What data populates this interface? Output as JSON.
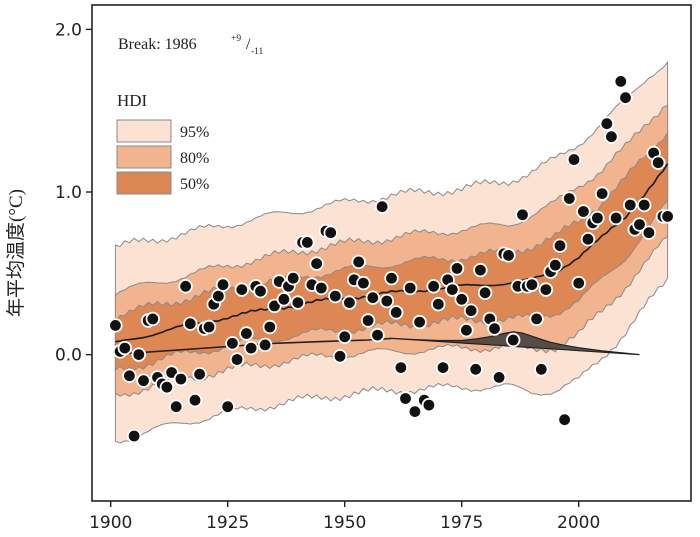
{
  "chart_data": {
    "type": "scatter",
    "ylabel": "年平均温度(°C)",
    "xlim": [
      1896,
      2024
    ],
    "ylim": [
      -0.9,
      2.15
    ],
    "x_ticks": [
      1900,
      1925,
      1950,
      1975,
      2000
    ],
    "y_ticks": [
      0.0,
      1.0,
      2.0
    ],
    "y_tick_labels": [
      "0.0",
      "1.0",
      "2.0"
    ],
    "annotation": {
      "prefix": "Break: 1986",
      "sup": "+9",
      "sep": "/",
      "sub": "-11"
    },
    "legend": {
      "title": "HDI",
      "placement": "top-left",
      "entries": [
        {
          "label": "95%",
          "color": "#fbe2d3"
        },
        {
          "label": "80%",
          "color": "#f2b48e"
        },
        {
          "label": "50%",
          "color": "#dd8755"
        }
      ]
    },
    "band_colors": {
      "hdi95": "#fbe2d3",
      "hdi80": "#f2b48e",
      "hdi50": "#dd8755",
      "band_edge": "#8a8a8a",
      "mean_line": "#1a1a1a",
      "marker": "#111111",
      "marker_edge": "#ffffff"
    },
    "band_anchors": {
      "x": [
        1901,
        1915,
        1930,
        1945,
        1960,
        1975,
        1985,
        1990,
        1995,
        2000,
        2005,
        2010,
        2015,
        2019
      ],
      "mean": [
        0.07,
        0.17,
        0.26,
        0.33,
        0.38,
        0.42,
        0.44,
        0.46,
        0.51,
        0.6,
        0.72,
        0.85,
        1.02,
        1.16
      ],
      "hdi50_lo": [
        -0.1,
        0.0,
        0.08,
        0.14,
        0.18,
        0.21,
        0.22,
        0.22,
        0.26,
        0.33,
        0.46,
        0.6,
        0.78,
        0.93
      ],
      "hdi50_hi": [
        0.24,
        0.34,
        0.43,
        0.5,
        0.56,
        0.6,
        0.63,
        0.67,
        0.72,
        0.82,
        0.94,
        1.08,
        1.24,
        1.38
      ],
      "hdi80_lo": [
        -0.25,
        -0.15,
        -0.07,
        -0.01,
        0.02,
        0.04,
        0.05,
        0.03,
        0.05,
        0.12,
        0.27,
        0.42,
        0.58,
        0.72
      ],
      "hdi80_hi": [
        0.38,
        0.48,
        0.58,
        0.66,
        0.72,
        0.77,
        0.8,
        0.86,
        0.93,
        1.04,
        1.14,
        1.27,
        1.44,
        1.56
      ],
      "hdi95_lo": [
        -0.53,
        -0.42,
        -0.33,
        -0.26,
        -0.22,
        -0.2,
        -0.2,
        -0.23,
        -0.22,
        -0.16,
        -0.02,
        0.14,
        0.32,
        0.46
      ],
      "hdi95_hi": [
        0.66,
        0.74,
        0.83,
        0.91,
        0.98,
        1.02,
        1.07,
        1.12,
        1.2,
        1.3,
        1.42,
        1.56,
        1.72,
        1.8
      ]
    },
    "trend_line": {
      "x": [
        1901,
        1905,
        1915,
        1925,
        1935,
        1945,
        1955,
        1960
      ],
      "y": [
        0.0,
        0.01,
        0.03,
        0.05,
        0.07,
        0.08,
        0.09,
        0.1
      ]
    },
    "break_density": {
      "x": [
        1960,
        1965,
        1970,
        1975,
        1978,
        1981,
        1984,
        1986,
        1988,
        1990,
        1992,
        1994,
        1997,
        2000,
        2005,
        2013
      ],
      "height": [
        0.0,
        0.002,
        0.006,
        0.015,
        0.03,
        0.05,
        0.075,
        0.09,
        0.085,
        0.07,
        0.055,
        0.04,
        0.027,
        0.018,
        0.008,
        0.0
      ]
    },
    "points": [
      {
        "x": 1901,
        "y": 0.18
      },
      {
        "x": 1902,
        "y": 0.02
      },
      {
        "x": 1903,
        "y": 0.04
      },
      {
        "x": 1904,
        "y": -0.13
      },
      {
        "x": 1905,
        "y": -0.5
      },
      {
        "x": 1906,
        "y": 0.0
      },
      {
        "x": 1907,
        "y": -0.16
      },
      {
        "x": 1908,
        "y": 0.21
      },
      {
        "x": 1909,
        "y": 0.22
      },
      {
        "x": 1910,
        "y": -0.14
      },
      {
        "x": 1911,
        "y": -0.18
      },
      {
        "x": 1912,
        "y": -0.2
      },
      {
        "x": 1913,
        "y": -0.11
      },
      {
        "x": 1914,
        "y": -0.32
      },
      {
        "x": 1915,
        "y": -0.15
      },
      {
        "x": 1916,
        "y": 0.42
      },
      {
        "x": 1917,
        "y": 0.19
      },
      {
        "x": 1918,
        "y": -0.28
      },
      {
        "x": 1919,
        "y": -0.12
      },
      {
        "x": 1920,
        "y": 0.16
      },
      {
        "x": 1921,
        "y": 0.17
      },
      {
        "x": 1922,
        "y": 0.31
      },
      {
        "x": 1923,
        "y": 0.36
      },
      {
        "x": 1924,
        "y": 0.43
      },
      {
        "x": 1925,
        "y": -0.32
      },
      {
        "x": 1926,
        "y": 0.07
      },
      {
        "x": 1927,
        "y": -0.03
      },
      {
        "x": 1928,
        "y": 0.4
      },
      {
        "x": 1929,
        "y": 0.13
      },
      {
        "x": 1930,
        "y": 0.04
      },
      {
        "x": 1931,
        "y": 0.42
      },
      {
        "x": 1932,
        "y": 0.39
      },
      {
        "x": 1933,
        "y": 0.06
      },
      {
        "x": 1934,
        "y": 0.17
      },
      {
        "x": 1935,
        "y": 0.3
      },
      {
        "x": 1936,
        "y": 0.45
      },
      {
        "x": 1937,
        "y": 0.34
      },
      {
        "x": 1938,
        "y": 0.42
      },
      {
        "x": 1939,
        "y": 0.47
      },
      {
        "x": 1940,
        "y": 0.32
      },
      {
        "x": 1941,
        "y": 0.69
      },
      {
        "x": 1942,
        "y": 0.69
      },
      {
        "x": 1943,
        "y": 0.43
      },
      {
        "x": 1944,
        "y": 0.56
      },
      {
        "x": 1945,
        "y": 0.41
      },
      {
        "x": 1946,
        "y": 0.76
      },
      {
        "x": 1947,
        "y": 0.75
      },
      {
        "x": 1948,
        "y": 0.36
      },
      {
        "x": 1949,
        "y": -0.01
      },
      {
        "x": 1950,
        "y": 0.11
      },
      {
        "x": 1951,
        "y": 0.32
      },
      {
        "x": 1952,
        "y": 0.46
      },
      {
        "x": 1953,
        "y": 0.57
      },
      {
        "x": 1954,
        "y": 0.44
      },
      {
        "x": 1955,
        "y": 0.21
      },
      {
        "x": 1956,
        "y": 0.35
      },
      {
        "x": 1957,
        "y": 0.12
      },
      {
        "x": 1958,
        "y": 0.91
      },
      {
        "x": 1959,
        "y": 0.33
      },
      {
        "x": 1960,
        "y": 0.47
      },
      {
        "x": 1961,
        "y": 0.26
      },
      {
        "x": 1962,
        "y": -0.08
      },
      {
        "x": 1963,
        "y": -0.27
      },
      {
        "x": 1964,
        "y": 0.41
      },
      {
        "x": 1965,
        "y": -0.35
      },
      {
        "x": 1966,
        "y": 0.2
      },
      {
        "x": 1967,
        "y": -0.28
      },
      {
        "x": 1968,
        "y": -0.31
      },
      {
        "x": 1969,
        "y": 0.42
      },
      {
        "x": 1970,
        "y": 0.31
      },
      {
        "x": 1971,
        "y": -0.08
      },
      {
        "x": 1972,
        "y": 0.46
      },
      {
        "x": 1973,
        "y": 0.4
      },
      {
        "x": 1974,
        "y": 0.53
      },
      {
        "x": 1975,
        "y": 0.34
      },
      {
        "x": 1976,
        "y": 0.15
      },
      {
        "x": 1977,
        "y": 0.27
      },
      {
        "x": 1978,
        "y": -0.09
      },
      {
        "x": 1979,
        "y": 0.52
      },
      {
        "x": 1980,
        "y": 0.38
      },
      {
        "x": 1981,
        "y": 0.22
      },
      {
        "x": 1982,
        "y": 0.16
      },
      {
        "x": 1983,
        "y": -0.14
      },
      {
        "x": 1984,
        "y": 0.62
      },
      {
        "x": 1985,
        "y": 0.61
      },
      {
        "x": 1986,
        "y": 0.09
      },
      {
        "x": 1987,
        "y": 0.42
      },
      {
        "x": 1988,
        "y": 0.86
      },
      {
        "x": 1989,
        "y": 0.42
      },
      {
        "x": 1990,
        "y": 0.43
      },
      {
        "x": 1991,
        "y": 0.22
      },
      {
        "x": 1992,
        "y": -0.09
      },
      {
        "x": 1993,
        "y": 0.4
      },
      {
        "x": 1994,
        "y": 0.51
      },
      {
        "x": 1995,
        "y": 0.55
      },
      {
        "x": 1996,
        "y": 0.67
      },
      {
        "x": 1997,
        "y": -0.4
      },
      {
        "x": 1998,
        "y": 0.96
      },
      {
        "x": 1999,
        "y": 1.2
      },
      {
        "x": 2000,
        "y": 0.44
      },
      {
        "x": 2001,
        "y": 0.88
      },
      {
        "x": 2002,
        "y": 0.71
      },
      {
        "x": 2003,
        "y": 0.81
      },
      {
        "x": 2004,
        "y": 0.84
      },
      {
        "x": 2005,
        "y": 0.99
      },
      {
        "x": 2006,
        "y": 1.42
      },
      {
        "x": 2007,
        "y": 1.34
      },
      {
        "x": 2008,
        "y": 0.84
      },
      {
        "x": 2009,
        "y": 1.68
      },
      {
        "x": 2010,
        "y": 1.58
      },
      {
        "x": 2011,
        "y": 0.92
      },
      {
        "x": 2012,
        "y": 0.77
      },
      {
        "x": 2013,
        "y": 0.8
      },
      {
        "x": 2014,
        "y": 0.92
      },
      {
        "x": 2015,
        "y": 0.75
      },
      {
        "x": 2016,
        "y": 1.24
      },
      {
        "x": 2017,
        "y": 1.18
      },
      {
        "x": 2018,
        "y": 0.85
      },
      {
        "x": 2019,
        "y": 0.85
      }
    ]
  }
}
